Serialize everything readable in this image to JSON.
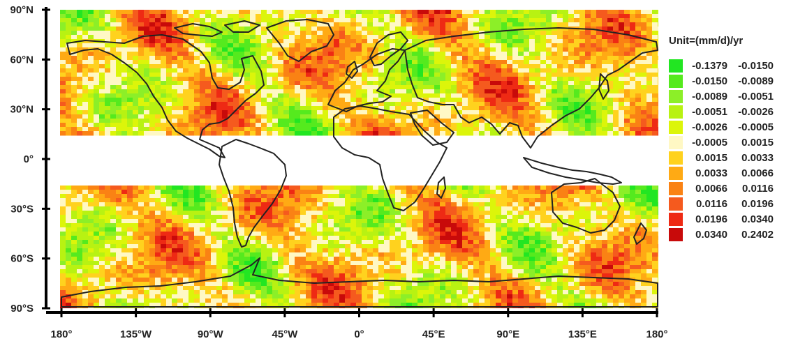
{
  "colors": {
    "axis": "#000000",
    "coast": "#222222",
    "background": "#ffffff"
  },
  "axes": {
    "y_ticks": [
      "90°N",
      "60°N",
      "30°N",
      "0°",
      "30°S",
      "60°S",
      "90°S"
    ],
    "x_ticks": [
      "180°",
      "135°W",
      "90°W",
      "45°W",
      "0°",
      "45°E",
      "90°E",
      "135°E",
      "180°"
    ]
  },
  "map": {
    "projection": "equirectangular",
    "lon_range": [
      -180,
      180
    ],
    "lat_range": [
      -90,
      90
    ],
    "masked_band": [
      -15,
      15
    ],
    "masked_note": "no data between 15°S and 15°N (white band)"
  },
  "legend": {
    "title": "Unit=(mm/d)/yr",
    "entries": [
      {
        "lo": "-0.1379",
        "hi": "-0.0150",
        "color": "#22e622"
      },
      {
        "lo": "-0.0150",
        "hi": "-0.0089",
        "color": "#55ea1e"
      },
      {
        "lo": "-0.0089",
        "hi": "-0.0051",
        "color": "#8cef28"
      },
      {
        "lo": "-0.0051",
        "hi": "-0.0026",
        "color": "#b8f212"
      },
      {
        "lo": "-0.0026",
        "hi": "-0.0005",
        "color": "#dcf50a"
      },
      {
        "lo": "-0.0005",
        "hi": "0.0015",
        "color": "#fff8c4"
      },
      {
        "lo": "0.0015",
        "hi": "0.0033",
        "color": "#ffd21e"
      },
      {
        "lo": "0.0033",
        "hi": "0.0066",
        "color": "#ffaa14"
      },
      {
        "lo": "0.0066",
        "hi": "0.0116",
        "color": "#fa8214"
      },
      {
        "lo": "0.0116",
        "hi": "0.0196",
        "color": "#f55a1e"
      },
      {
        "lo": "0.0196",
        "hi": "0.0340",
        "color": "#ee2a14"
      },
      {
        "lo": "0.0340",
        "hi": "0.2402",
        "color": "#c80a0a"
      }
    ]
  },
  "chart_data": {
    "type": "heatmap",
    "title": "",
    "xlabel": "",
    "ylabel": "",
    "xlim": [
      -180,
      180
    ],
    "ylim": [
      -90,
      90
    ],
    "units": "Unit=(mm/d)/yr",
    "note": "Global gridded trend map; values outside 15°S–15°N rendered per legend classes"
  }
}
